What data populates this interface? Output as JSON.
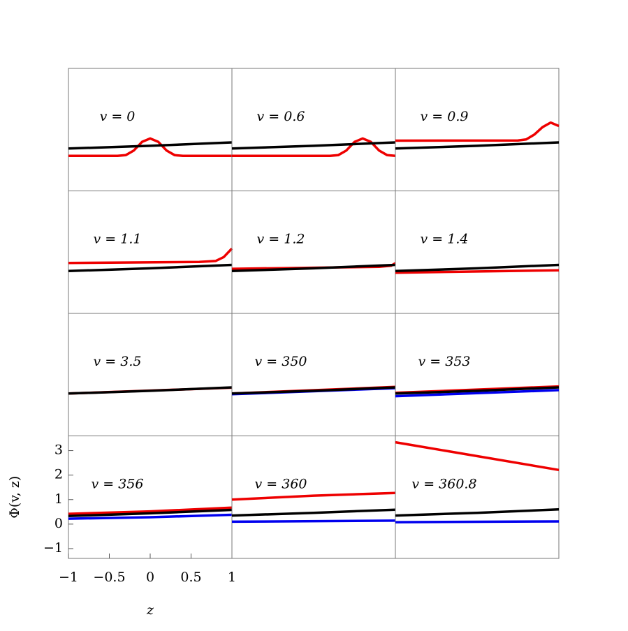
{
  "chart_data": [
    {
      "type": "line",
      "label": "v = 0",
      "xlim": [
        -1,
        1
      ],
      "ylim": [
        -1.4,
        3.6
      ],
      "series": [
        {
          "color": "#ee0000",
          "x": [
            -1,
            -0.4,
            -0.3,
            -0.2,
            -0.1,
            0,
            0.1,
            0.2,
            0.3,
            0.4,
            1
          ],
          "values": [
            0.03,
            0.03,
            0.06,
            0.25,
            0.6,
            0.74,
            0.6,
            0.25,
            0.06,
            0.03,
            0.03
          ]
        },
        {
          "color": "#000000",
          "x": [
            -1,
            0,
            1
          ],
          "values": [
            0.33,
            0.44,
            0.58
          ]
        }
      ]
    },
    {
      "type": "line",
      "label": "v = 0.6",
      "xlim": [
        -1,
        1
      ],
      "ylim": [
        -1.4,
        3.6
      ],
      "series": [
        {
          "color": "#ee0000",
          "x": [
            -1,
            0.2,
            0.3,
            0.4,
            0.5,
            0.6,
            0.7,
            0.8,
            0.9,
            1
          ],
          "values": [
            0.03,
            0.03,
            0.06,
            0.25,
            0.6,
            0.74,
            0.6,
            0.25,
            0.06,
            0.03
          ]
        },
        {
          "color": "#000000",
          "x": [
            -1,
            0,
            1
          ],
          "values": [
            0.33,
            0.44,
            0.58
          ]
        }
      ]
    },
    {
      "type": "line",
      "label": "v = 0.9",
      "xlim": [
        -1,
        1
      ],
      "ylim": [
        -1.4,
        3.6
      ],
      "series": [
        {
          "color": "#ee0000",
          "x": [
            -1,
            0.5,
            0.6,
            0.7,
            0.8,
            0.9,
            1
          ],
          "values": [
            0.65,
            0.66,
            0.7,
            0.9,
            1.2,
            1.39,
            1.25
          ]
        },
        {
          "color": "#000000",
          "x": [
            -1,
            0,
            1
          ],
          "values": [
            0.33,
            0.44,
            0.58
          ]
        }
      ]
    },
    {
      "type": "line",
      "label": "v = 1.1",
      "xlim": [
        -1,
        1
      ],
      "ylim": [
        -1.4,
        3.6
      ],
      "series": [
        {
          "color": "#ee0000",
          "x": [
            -1,
            0.6,
            0.8,
            0.9,
            1
          ],
          "values": [
            0.66,
            0.7,
            0.74,
            0.9,
            1.25
          ]
        },
        {
          "color": "#000000",
          "x": [
            -1,
            0,
            1
          ],
          "values": [
            0.33,
            0.44,
            0.58
          ]
        }
      ]
    },
    {
      "type": "line",
      "label": "v = 1.2",
      "xlim": [
        -1,
        1
      ],
      "ylim": [
        -1.4,
        3.6
      ],
      "series": [
        {
          "color": "#ee0000",
          "x": [
            -1,
            0.8,
            0.95,
            1
          ],
          "values": [
            0.42,
            0.5,
            0.55,
            0.65
          ]
        },
        {
          "color": "#000000",
          "x": [
            -1,
            0,
            1
          ],
          "values": [
            0.33,
            0.44,
            0.58
          ]
        }
      ]
    },
    {
      "type": "line",
      "label": "v = 1.4",
      "xlim": [
        -1,
        1
      ],
      "ylim": [
        -1.4,
        3.6
      ],
      "series": [
        {
          "color": "#ee0000",
          "x": [
            -1,
            1
          ],
          "values": [
            0.26,
            0.36
          ]
        },
        {
          "color": "#000000",
          "x": [
            -1,
            0,
            1
          ],
          "values": [
            0.33,
            0.44,
            0.58
          ]
        }
      ]
    },
    {
      "type": "line",
      "label": "v = 3.5",
      "xlim": [
        -1,
        1
      ],
      "ylim": [
        -1.4,
        3.6
      ],
      "series": [
        {
          "color": "#ee0000",
          "x": [
            -1,
            1
          ],
          "values": [
            0.33,
            0.57
          ]
        },
        {
          "color": "#000000",
          "x": [
            -1,
            0,
            1
          ],
          "values": [
            0.33,
            0.44,
            0.58
          ]
        }
      ]
    },
    {
      "type": "line",
      "label": "v = 350",
      "xlim": [
        -1,
        1
      ],
      "ylim": [
        -1.4,
        3.6
      ],
      "series": [
        {
          "color": "#ee0000",
          "x": [
            -1,
            1
          ],
          "values": [
            0.33,
            0.6
          ]
        },
        {
          "color": "#0000ee",
          "x": [
            -1,
            1
          ],
          "values": [
            0.3,
            0.55
          ]
        },
        {
          "color": "#000000",
          "x": [
            -1,
            0,
            1
          ],
          "values": [
            0.33,
            0.44,
            0.58
          ]
        }
      ]
    },
    {
      "type": "line",
      "label": "v = 353",
      "xlim": [
        -1,
        1
      ],
      "ylim": [
        -1.4,
        3.6
      ],
      "series": [
        {
          "color": "#ee0000",
          "x": [
            -1,
            1
          ],
          "values": [
            0.36,
            0.62
          ]
        },
        {
          "color": "#0000ee",
          "x": [
            -1,
            1
          ],
          "values": [
            0.22,
            0.47
          ]
        },
        {
          "color": "#000000",
          "x": [
            -1,
            0,
            1
          ],
          "values": [
            0.33,
            0.44,
            0.58
          ]
        }
      ]
    },
    {
      "type": "line",
      "label": "v = 356",
      "xlim": [
        -1,
        1
      ],
      "ylim": [
        -1.4,
        3.6
      ],
      "xticks": [
        {
          "value": -1,
          "label": "−1"
        },
        {
          "value": -0.5,
          "label": "−0.5"
        },
        0,
        0.5,
        1
      ],
      "yticks": [
        {
          "value": -1,
          "label": "−1"
        },
        0,
        1,
        2,
        3
      ],
      "xlabel": "z",
      "ylabel": "Φ(v, z)",
      "series": [
        {
          "color": "#ee0000",
          "x": [
            -1,
            0,
            1
          ],
          "values": [
            0.42,
            0.52,
            0.67
          ]
        },
        {
          "color": "#0000ee",
          "x": [
            -1,
            0,
            1
          ],
          "values": [
            0.22,
            0.28,
            0.38
          ]
        },
        {
          "color": "#000000",
          "x": [
            -1,
            0,
            1
          ],
          "values": [
            0.33,
            0.44,
            0.58
          ]
        }
      ]
    },
    {
      "type": "line",
      "label": "v = 360",
      "xlim": [
        -1,
        1
      ],
      "ylim": [
        -1.4,
        3.6
      ],
      "series": [
        {
          "color": "#ee0000",
          "x": [
            -1,
            0,
            1
          ],
          "values": [
            1.0,
            1.16,
            1.27
          ]
        },
        {
          "color": "#0000ee",
          "x": [
            -1,
            1
          ],
          "values": [
            0.1,
            0.14
          ]
        },
        {
          "color": "#000000",
          "x": [
            -1,
            0,
            1
          ],
          "values": [
            0.35,
            0.46,
            0.59
          ]
        }
      ]
    },
    {
      "type": "line",
      "label": "v = 360.8",
      "xlim": [
        -1,
        1
      ],
      "ylim": [
        -1.4,
        3.6
      ],
      "series": [
        {
          "color": "#ee0000",
          "x": [
            -1,
            1
          ],
          "values": [
            3.34,
            2.21
          ]
        },
        {
          "color": "#0000ee",
          "x": [
            -1,
            1
          ],
          "values": [
            0.08,
            0.11
          ]
        },
        {
          "color": "#000000",
          "x": [
            -1,
            0,
            1
          ],
          "values": [
            0.35,
            0.46,
            0.6
          ]
        }
      ]
    }
  ]
}
